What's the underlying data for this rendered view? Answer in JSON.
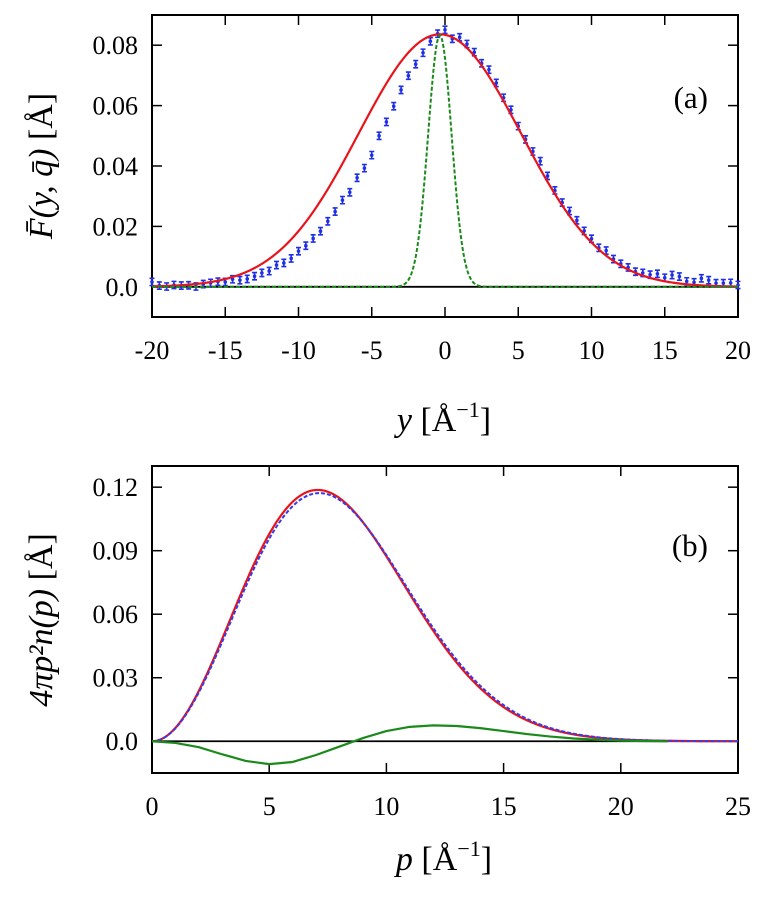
{
  "colors": {
    "fit": "#e8141c",
    "data_points": "#1f2fe6",
    "narrow_peak": "#1a8a1a",
    "dashed_total": "#3a3ae8",
    "difference": "#1a8a1a",
    "zero_line": "#000000"
  },
  "chart_data": [
    {
      "type": "scatter",
      "panel_label": "(a)",
      "xlabel": "y [Å^{-1}]",
      "ylabel": "F̄(y, q̄) [Å]",
      "xlim": [
        -20,
        20
      ],
      "ylim": [
        -0.01,
        0.09
      ],
      "xticks": [
        "-20",
        "-15",
        "-10",
        "-5",
        "0",
        "5",
        "10",
        "15",
        "20"
      ],
      "yticks": [
        "0.0",
        "0.02",
        "0.04",
        "0.06",
        "0.08"
      ],
      "grid": false,
      "legend": "none",
      "series": [
        {
          "kind": "points_with_errorbars",
          "color": "#1f2fe6",
          "x": [
            -20,
            -19.5,
            -19,
            -18.5,
            -18,
            -17.5,
            -17,
            -16.5,
            -16,
            -15.5,
            -15,
            -14.5,
            -14,
            -13.5,
            -13,
            -12.5,
            -12,
            -11.5,
            -11,
            -10.5,
            -10,
            -9.5,
            -9,
            -8.5,
            -8,
            -7.5,
            -7,
            -6.5,
            -6,
            -5.5,
            -5,
            -4.5,
            -4,
            -3.5,
            -3,
            -2.5,
            -2,
            -1.5,
            -1,
            -0.5,
            0,
            0.5,
            1,
            1.5,
            2,
            2.5,
            3,
            3.5,
            4,
            4.5,
            5,
            5.5,
            6,
            6.5,
            7,
            7.5,
            8,
            8.5,
            9,
            9.5,
            10,
            10.5,
            11,
            11.5,
            12,
            12.5,
            13,
            13.5,
            14,
            14.5,
            15,
            15.5,
            16,
            16.5,
            17,
            17.5,
            18,
            18.5,
            19,
            19.5,
            20
          ],
          "y": [
            0.0016,
            0.0004,
            0.0001,
            0.0006,
            0.0004,
            0.0005,
            0.0001,
            0.0009,
            0.0013,
            0.0017,
            0.0016,
            0.0025,
            0.0022,
            0.0026,
            0.0035,
            0.0046,
            0.0052,
            0.0072,
            0.0079,
            0.0094,
            0.0118,
            0.0136,
            0.016,
            0.0184,
            0.0217,
            0.0249,
            0.0287,
            0.0313,
            0.0361,
            0.0393,
            0.0436,
            0.05,
            0.0546,
            0.0598,
            0.0652,
            0.0699,
            0.0737,
            0.0775,
            0.0813,
            0.0838,
            0.0851,
            0.0821,
            0.0826,
            0.0804,
            0.0777,
            0.074,
            0.0719,
            0.0675,
            0.0626,
            0.0586,
            0.0532,
            0.0488,
            0.0448,
            0.0416,
            0.0367,
            0.0319,
            0.0279,
            0.0251,
            0.022,
            0.0185,
            0.0159,
            0.0129,
            0.012,
            0.0092,
            0.0076,
            0.0064,
            0.005,
            0.0046,
            0.004,
            0.0043,
            0.003,
            0.0039,
            0.0034,
            0.0018,
            0.0015,
            0.0028,
            0.0022,
            0.0012,
            0.0012,
            0.0013,
            0.0006
          ],
          "err": 0.0012
        },
        {
          "kind": "line",
          "color": "#e8141c",
          "model": "gaussian",
          "amplitude": 0.0836,
          "center": -0.35,
          "sigma": 5.55
        },
        {
          "kind": "dashed_line",
          "color": "#1a8a1a",
          "model": "gaussian",
          "amplitude": 0.0833,
          "center": -0.35,
          "sigma": 0.8
        }
      ]
    },
    {
      "type": "line",
      "panel_label": "(b)",
      "xlabel": "p [Å^{-1}]",
      "ylabel": "4πp²n(p) [Å]",
      "xlim": [
        0,
        25
      ],
      "ylim": [
        -0.015,
        0.13
      ],
      "xticks": [
        "0",
        "5",
        "10",
        "15",
        "20",
        "25"
      ],
      "yticks": [
        "0.0",
        "0.03",
        "0.06",
        "0.09",
        "0.12"
      ],
      "grid": false,
      "legend": "none",
      "series": [
        {
          "kind": "line",
          "color": "#e8141c",
          "model": "maxwell",
          "amplitude": 0.1187,
          "sigma": 5.0
        },
        {
          "kind": "dashed_line",
          "color": "#3a3ae8",
          "model": "maxwell",
          "amplitude": 0.1172,
          "sigma": 5.05
        },
        {
          "kind": "line",
          "color": "#1a8a1a",
          "x": [
            0,
            1,
            2,
            3,
            4,
            5,
            6,
            7,
            8,
            9,
            10,
            11,
            12,
            13,
            14,
            15,
            16,
            17,
            18,
            19,
            20,
            21,
            22
          ],
          "y": [
            0,
            -0.0008,
            -0.0028,
            -0.0062,
            -0.0093,
            -0.0108,
            -0.0098,
            -0.0065,
            -0.0025,
            0.0015,
            0.0048,
            0.0068,
            0.0075,
            0.0072,
            0.0062,
            0.0048,
            0.0034,
            0.0022,
            0.0013,
            0.0007,
            0.0003,
            0.0001,
            0
          ]
        }
      ]
    }
  ]
}
